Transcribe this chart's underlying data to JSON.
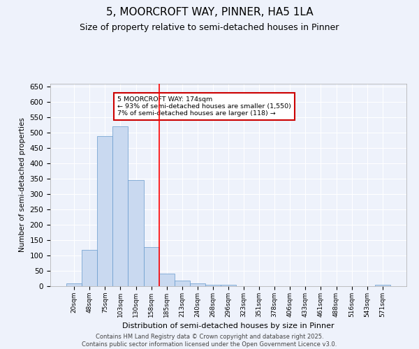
{
  "title": "5, MOORCROFT WAY, PINNER, HA5 1LA",
  "subtitle": "Size of property relative to semi-detached houses in Pinner",
  "xlabel": "Distribution of semi-detached houses by size in Pinner",
  "ylabel": "Number of semi-detached properties",
  "categories": [
    "20sqm",
    "48sqm",
    "75sqm",
    "103sqm",
    "130sqm",
    "158sqm",
    "185sqm",
    "213sqm",
    "240sqm",
    "268sqm",
    "296sqm",
    "323sqm",
    "351sqm",
    "378sqm",
    "406sqm",
    "433sqm",
    "461sqm",
    "488sqm",
    "516sqm",
    "543sqm",
    "571sqm"
  ],
  "values": [
    10,
    118,
    490,
    522,
    345,
    128,
    42,
    18,
    8,
    4,
    5,
    0,
    0,
    0,
    0,
    0,
    0,
    0,
    0,
    0,
    5
  ],
  "bar_color": "#c9d9f0",
  "bar_edge_color": "#6699cc",
  "vline_index": 6,
  "annotation_text": "5 MOORCROFT WAY: 174sqm\n← 93% of semi-detached houses are smaller (1,550)\n7% of semi-detached houses are larger (118) →",
  "annotation_box_color": "#ffffff",
  "annotation_box_edge_color": "#cc0000",
  "title_fontsize": 11,
  "subtitle_fontsize": 9,
  "footer_text": "Contains HM Land Registry data © Crown copyright and database right 2025.\nContains public sector information licensed under the Open Government Licence v3.0.",
  "background_color": "#eef2fb",
  "ylim": [
    0,
    660
  ],
  "yticks": [
    0,
    50,
    100,
    150,
    200,
    250,
    300,
    350,
    400,
    450,
    500,
    550,
    600,
    650
  ]
}
